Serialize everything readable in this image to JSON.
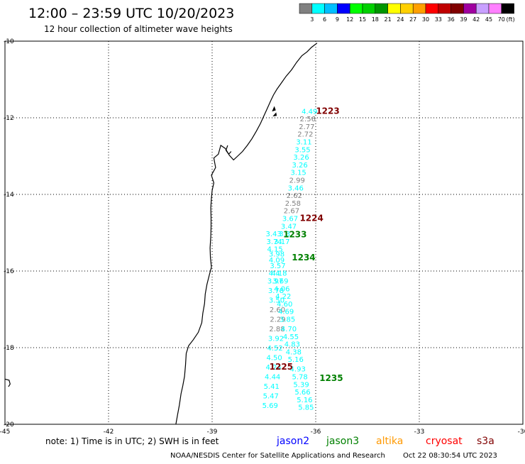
{
  "header": {
    "title": "12:00 – 23:59 UTC 10/20/2023",
    "subtitle": "12 hour collection of altimeter wave heights"
  },
  "colorbar": {
    "colors": [
      "#808080",
      "#00ffff",
      "#00bfff",
      "#0000ff",
      "#00ff00",
      "#00d000",
      "#009600",
      "#ffff00",
      "#ffd000",
      "#ffa000",
      "#ff0000",
      "#c00000",
      "#800000",
      "#a000a0",
      "#c8a0ff",
      "#ff80ff",
      "#000000"
    ],
    "labels": [
      "3",
      "6",
      "9",
      "12",
      "15",
      "18",
      "21",
      "24",
      "27",
      "30",
      "33",
      "36",
      "39",
      "42",
      "45",
      "70"
    ],
    "unit": "(ft)"
  },
  "map": {
    "lon_range": [
      -45,
      -30
    ],
    "lat_range": [
      -20,
      -10
    ],
    "x_ticks": [
      {
        "value": -45,
        "label": "-45"
      },
      {
        "value": -42,
        "label": "-42"
      },
      {
        "value": -39,
        "label": "-39"
      },
      {
        "value": -36,
        "label": "-36"
      },
      {
        "value": -33,
        "label": "-33"
      },
      {
        "value": -30,
        "label": "-30"
      }
    ],
    "y_ticks": [
      {
        "value": -10,
        "label": "-10"
      },
      {
        "value": -12,
        "label": "-12"
      },
      {
        "value": -14,
        "label": "-14"
      },
      {
        "value": -16,
        "label": "-16"
      },
      {
        "value": -18,
        "label": "-18"
      },
      {
        "value": -20,
        "label": "-20"
      }
    ],
    "coastline": [
      [
        -35.96,
        -10.05
      ],
      [
        -36.12,
        -10.16
      ],
      [
        -36.25,
        -10.28
      ],
      [
        -36.4,
        -10.38
      ],
      [
        -36.55,
        -10.55
      ],
      [
        -36.7,
        -10.75
      ],
      [
        -36.86,
        -10.92
      ],
      [
        -37.0,
        -11.1
      ],
      [
        -37.12,
        -11.25
      ],
      [
        -37.22,
        -11.4
      ],
      [
        -37.3,
        -11.55
      ],
      [
        -37.4,
        -11.75
      ],
      [
        -37.5,
        -11.95
      ],
      [
        -37.6,
        -12.15
      ],
      [
        -37.72,
        -12.35
      ],
      [
        -37.85,
        -12.55
      ],
      [
        -37.98,
        -12.72
      ],
      [
        -38.12,
        -12.88
      ],
      [
        -38.26,
        -13.0
      ],
      [
        -38.38,
        -13.1
      ],
      [
        -38.5,
        -12.98
      ],
      [
        -38.62,
        -12.8
      ],
      [
        -38.75,
        -12.72
      ],
      [
        -38.82,
        -12.95
      ],
      [
        -38.95,
        -13.05
      ],
      [
        -38.9,
        -13.3
      ],
      [
        -39.02,
        -13.5
      ],
      [
        -38.95,
        -13.7
      ],
      [
        -39.0,
        -13.9
      ],
      [
        -39.02,
        -14.1
      ],
      [
        -39.04,
        -14.35
      ],
      [
        -39.03,
        -14.6
      ],
      [
        -39.03,
        -14.85
      ],
      [
        -39.04,
        -15.1
      ],
      [
        -39.06,
        -15.4
      ],
      [
        -39.05,
        -15.65
      ],
      [
        -39.02,
        -15.9
      ],
      [
        -39.08,
        -16.1
      ],
      [
        -39.15,
        -16.35
      ],
      [
        -39.2,
        -16.6
      ],
      [
        -39.22,
        -16.85
      ],
      [
        -39.27,
        -17.1
      ],
      [
        -39.3,
        -17.35
      ],
      [
        -39.4,
        -17.6
      ],
      [
        -39.55,
        -17.8
      ],
      [
        -39.68,
        -17.95
      ],
      [
        -39.75,
        -18.15
      ],
      [
        -39.77,
        -18.45
      ],
      [
        -39.8,
        -18.75
      ],
      [
        -39.85,
        -19.0
      ],
      [
        -39.9,
        -19.2
      ],
      [
        -39.95,
        -19.5
      ],
      [
        -40.0,
        -19.75
      ],
      [
        -40.05,
        -20.0
      ]
    ],
    "coast_islands": [
      [
        [
          -37.2,
          -11.72
        ],
        [
          -37.25,
          -11.82
        ],
        [
          -37.17,
          -11.8
        ]
      ],
      [
        [
          -37.15,
          -11.88
        ],
        [
          -37.22,
          -11.95
        ],
        [
          -37.14,
          -11.94
        ]
      ]
    ],
    "coast_inlet": [
      [
        -38.55,
        -12.72
      ],
      [
        -38.6,
        -12.85
      ],
      [
        -38.52,
        -12.95
      ],
      [
        -38.45,
        -12.88
      ]
    ],
    "far_coast": [
      [
        -45.0,
        -18.82
      ],
      [
        -44.88,
        -18.85
      ],
      [
        -44.85,
        -18.95
      ],
      [
        -44.9,
        -19.02
      ]
    ],
    "measurements": [
      {
        "lon": -36.18,
        "lat": -11.82,
        "label": "4.49",
        "color": "#00ffff"
      },
      {
        "lon": -36.23,
        "lat": -12.02,
        "label": "2.56",
        "color": "#808080"
      },
      {
        "lon": -36.26,
        "lat": -12.22,
        "label": "2.77",
        "color": "#808080"
      },
      {
        "lon": -36.3,
        "lat": -12.42,
        "label": "2.72",
        "color": "#808080"
      },
      {
        "lon": -36.34,
        "lat": -12.62,
        "label": "3.11",
        "color": "#00ffff"
      },
      {
        "lon": -36.38,
        "lat": -12.82,
        "label": "3.55",
        "color": "#00ffff"
      },
      {
        "lon": -36.42,
        "lat": -13.02,
        "label": "3.26",
        "color": "#00ffff"
      },
      {
        "lon": -36.46,
        "lat": -13.22,
        "label": "3.26",
        "color": "#00ffff"
      },
      {
        "lon": -36.5,
        "lat": -13.42,
        "label": "3.15",
        "color": "#00ffff"
      },
      {
        "lon": -36.54,
        "lat": -13.62,
        "label": "2.99",
        "color": "#808080"
      },
      {
        "lon": -36.58,
        "lat": -13.82,
        "label": "3.46",
        "color": "#00ffff"
      },
      {
        "lon": -36.62,
        "lat": -14.02,
        "label": "2.62",
        "color": "#808080"
      },
      {
        "lon": -36.66,
        "lat": -14.22,
        "label": "2.58",
        "color": "#808080"
      },
      {
        "lon": -36.7,
        "lat": -14.42,
        "label": "2.67",
        "color": "#808080"
      },
      {
        "lon": -36.74,
        "lat": -14.62,
        "label": "3.67",
        "color": "#00ffff"
      },
      {
        "lon": -36.78,
        "lat": -14.82,
        "label": "3.47",
        "color": "#00ffff"
      },
      {
        "lon": -37.22,
        "lat": -15.02,
        "label": "3.43",
        "color": "#00ffff"
      },
      {
        "lon": -36.9,
        "lat": -15.02,
        "label": "3.3",
        "color": "#00ffff"
      },
      {
        "lon": -37.2,
        "lat": -15.22,
        "label": "3.74",
        "color": "#00ffff"
      },
      {
        "lon": -36.98,
        "lat": -15.22,
        "label": "3.17",
        "color": "#00ffff"
      },
      {
        "lon": -37.18,
        "lat": -15.42,
        "label": "4.15",
        "color": "#00ffff"
      },
      {
        "lon": -37.13,
        "lat": -15.55,
        "label": "3.98",
        "color": "#00ffff"
      },
      {
        "lon": -37.13,
        "lat": -15.7,
        "label": "4.09",
        "color": "#00ffff"
      },
      {
        "lon": -37.1,
        "lat": -15.85,
        "label": "3.57",
        "color": "#00ffff"
      },
      {
        "lon": -37.06,
        "lat": -16.05,
        "label": "4.18",
        "color": "#00ffff"
      },
      {
        "lon": -37.2,
        "lat": -16.05,
        "label": "4.4",
        "color": "#00ffff"
      },
      {
        "lon": -37.02,
        "lat": -16.25,
        "label": "3.69",
        "color": "#00ffff"
      },
      {
        "lon": -37.17,
        "lat": -16.25,
        "label": "3.97",
        "color": "#00ffff"
      },
      {
        "lon": -36.98,
        "lat": -16.45,
        "label": "4.06",
        "color": "#00ffff"
      },
      {
        "lon": -37.15,
        "lat": -16.5,
        "label": "3.78",
        "color": "#00ffff"
      },
      {
        "lon": -36.94,
        "lat": -16.65,
        "label": "4.22",
        "color": "#00ffff"
      },
      {
        "lon": -37.13,
        "lat": -16.75,
        "label": "3.50",
        "color": "#00ffff"
      },
      {
        "lon": -36.9,
        "lat": -16.85,
        "label": "4.60",
        "color": "#00ffff"
      },
      {
        "lon": -37.11,
        "lat": -17.0,
        "label": "2.60",
        "color": "#808080"
      },
      {
        "lon": -36.86,
        "lat": -17.05,
        "label": "4.69",
        "color": "#00ffff"
      },
      {
        "lon": -37.1,
        "lat": -17.25,
        "label": "2.29",
        "color": "#808080"
      },
      {
        "lon": -36.82,
        "lat": -17.25,
        "label": "3.85",
        "color": "#00ffff"
      },
      {
        "lon": -37.12,
        "lat": -17.5,
        "label": "2.88",
        "color": "#808080"
      },
      {
        "lon": -36.78,
        "lat": -17.5,
        "label": "4.70",
        "color": "#00ffff"
      },
      {
        "lon": -37.15,
        "lat": -17.75,
        "label": "3.92",
        "color": "#00ffff"
      },
      {
        "lon": -36.72,
        "lat": -17.7,
        "label": "4.55",
        "color": "#00ffff"
      },
      {
        "lon": -37.18,
        "lat": -18.0,
        "label": "4.52",
        "color": "#00ffff"
      },
      {
        "lon": -36.68,
        "lat": -17.9,
        "label": "4.83",
        "color": "#00ffff"
      },
      {
        "lon": -37.2,
        "lat": -18.25,
        "label": "4.50",
        "color": "#00ffff"
      },
      {
        "lon": -36.64,
        "lat": -18.1,
        "label": "4.38",
        "color": "#00ffff"
      },
      {
        "lon": -37.22,
        "lat": -18.5,
        "label": "4.24",
        "color": "#00ffff"
      },
      {
        "lon": -36.58,
        "lat": -18.3,
        "label": "5.16",
        "color": "#00ffff"
      },
      {
        "lon": -37.25,
        "lat": -18.75,
        "label": "4.44",
        "color": "#00ffff"
      },
      {
        "lon": -36.52,
        "lat": -18.55,
        "label": "4.93",
        "color": "#00ffff"
      },
      {
        "lon": -37.28,
        "lat": -19.0,
        "label": "5.41",
        "color": "#00ffff"
      },
      {
        "lon": -36.46,
        "lat": -18.75,
        "label": "5.78",
        "color": "#00ffff"
      },
      {
        "lon": -37.3,
        "lat": -19.25,
        "label": "5.47",
        "color": "#00ffff"
      },
      {
        "lon": -36.42,
        "lat": -18.95,
        "label": "5.39",
        "color": "#00ffff"
      },
      {
        "lon": -37.32,
        "lat": -19.5,
        "label": "5.69",
        "color": "#00ffff"
      },
      {
        "lon": -36.38,
        "lat": -19.15,
        "label": "5.66",
        "color": "#00ffff"
      },
      {
        "lon": -36.32,
        "lat": -19.35,
        "label": "5.16",
        "color": "#00ffff"
      },
      {
        "lon": -36.28,
        "lat": -19.55,
        "label": "5.85",
        "color": "#00ffff"
      }
    ],
    "passes": [
      {
        "lon": -35.65,
        "lat": -11.82,
        "label": "1223",
        "color": "#800000"
      },
      {
        "lon": -36.12,
        "lat": -14.62,
        "label": "1224",
        "color": "#800000"
      },
      {
        "lon": -36.6,
        "lat": -15.05,
        "label": "1233",
        "color": "#008000"
      },
      {
        "lon": -36.35,
        "lat": -15.65,
        "label": "1234",
        "color": "#008000"
      },
      {
        "lon": -37.0,
        "lat": -18.5,
        "label": "1225",
        "color": "#800000"
      },
      {
        "lon": -35.55,
        "lat": -18.8,
        "label": "1235",
        "color": "#008000"
      }
    ]
  },
  "footer": {
    "note": "note: 1) Time is in UTC; 2) SWH is in feet",
    "satellites": [
      {
        "name": "jason2",
        "color": "#0000ff"
      },
      {
        "name": "jason3",
        "color": "#008000"
      },
      {
        "name": "altika",
        "color": "#ff9900"
      },
      {
        "name": "cryosat",
        "color": "#ff0000"
      },
      {
        "name": "s3a",
        "color": "#800000"
      }
    ],
    "credit": "NOAA/NESDIS Center for Satellite Applications and Research",
    "timestamp": "Oct 22 08:30:54 UTC 2023"
  }
}
